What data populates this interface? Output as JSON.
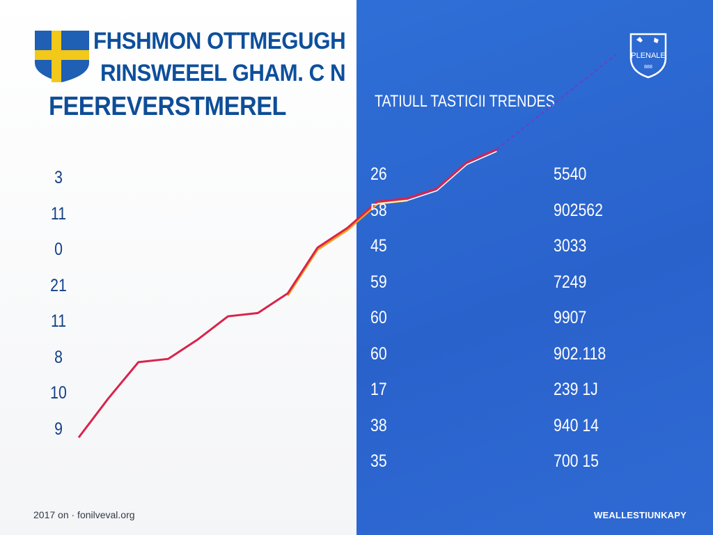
{
  "header": {
    "title_lines": [
      "FHSHMON OTTMEGUGH",
      "RINSWEEEL GHAM. C N",
      "FEEREVERSTMEREL"
    ],
    "subtitle": "TATIULL TASTICII TRENDES",
    "crest_text": "PLENALE",
    "crest_subtext": "888"
  },
  "colors": {
    "title": "#0d4f9c",
    "panel_right": "#2e6fd6",
    "flag_blue": "#1f5fb4",
    "flag_yellow": "#f2c81a",
    "line_red": "#d9234b",
    "line_orange": "#f2a01a",
    "projection": "#6a3fc4"
  },
  "chart_data": {
    "type": "line",
    "left_column_values": [
      "3",
      "11",
      "0",
      "21",
      "11",
      "8",
      "10",
      "9"
    ],
    "middle_column_values": [
      "26",
      "58",
      "45",
      "59",
      "60",
      "60",
      "17",
      "38",
      "35"
    ],
    "right_column_values": [
      "5540",
      "902562",
      "3033",
      "7249",
      "9907",
      "902.118",
      "239 1J",
      "940 14",
      "700 15"
    ],
    "series": [
      {
        "points": [
          [
            0,
            0
          ],
          [
            1,
            12
          ],
          [
            2,
            23
          ],
          [
            3,
            24
          ],
          [
            4,
            30
          ],
          [
            5,
            37
          ],
          [
            6,
            38
          ],
          [
            7,
            44
          ],
          [
            8,
            58
          ],
          [
            9,
            64
          ],
          [
            10,
            72
          ],
          [
            11,
            73
          ],
          [
            12,
            76
          ],
          [
            13,
            84
          ],
          [
            14,
            88
          ]
        ]
      }
    ],
    "projection_points": [
      [
        14,
        88
      ],
      [
        18,
        117
      ]
    ],
    "grid": false,
    "legend": "none"
  },
  "footer": {
    "left": "2017 on · fonilveval.org",
    "right": "WEALLESTIUNKAPY"
  }
}
